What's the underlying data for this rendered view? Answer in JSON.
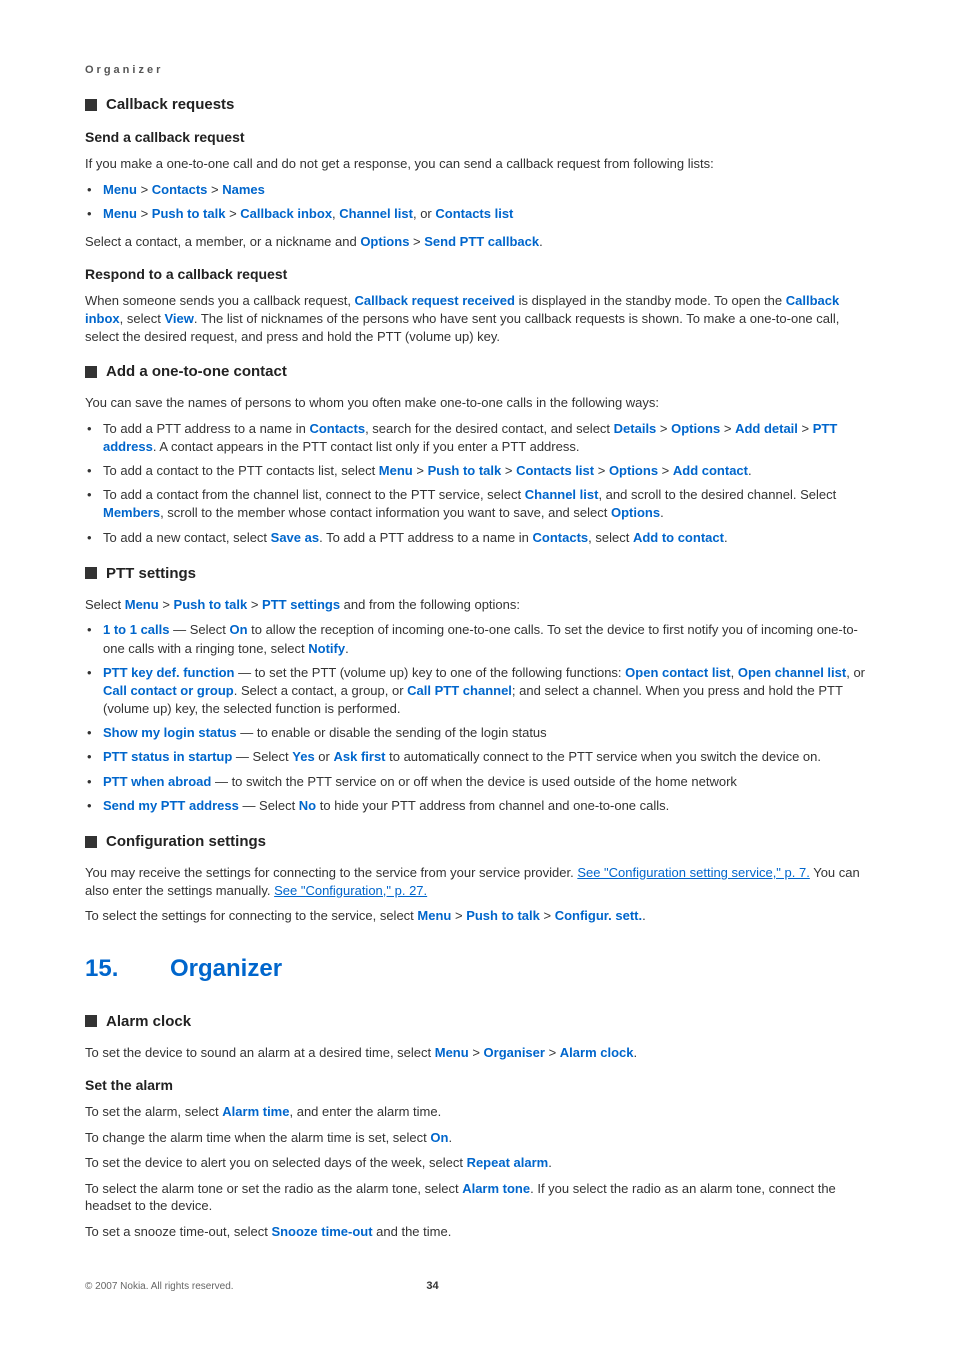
{
  "folio": "Organizer",
  "sections": {
    "callback_requests": "Callback requests",
    "send_cb_req": "Send a callback request",
    "send_cb_p": "If you make a one-to-one call and do not get a response, you can send a callback request from following lists:",
    "send_cb_b1_a": "Menu",
    "send_cb_b1_b": "Contacts",
    "send_cb_b1_c": "Names",
    "send_cb_b2_a": "Menu",
    "send_cb_b2_b": "Push to talk",
    "send_cb_b2_c": "Callback inbox",
    "send_cb_b2_d": "Channel list",
    "send_cb_b2_e": "Contacts list",
    "send_cb_last_1": "Select a contact, a member, or a nickname and ",
    "send_cb_last_2": "Options",
    "send_cb_last_3": "Send PTT callback",
    "respond_cb": "Respond to a callback request",
    "respond_cb_p1": "When someone sends you a callback request, ",
    "respond_cb_p2": "Callback request received",
    "respond_cb_p3": " is displayed in the standby mode. To open the ",
    "respond_cb_p4": "Callback inbox",
    "respond_cb_p5": ", select ",
    "respond_cb_p6": "View",
    "respond_cb_p7": ". The list of nicknames of the persons who have sent you callback requests is shown. To make a one-to-one call, select the desired request, and press and hold the PTT (volume up) key.",
    "add_one": "Add a one-to-one contact",
    "add_one_p": "You can save the names of persons to whom you often make one-to-one calls in the following ways:",
    "add_one_b1_1": "To add a PTT address to a name in ",
    "add_one_b1_2": "Contacts",
    "add_one_b1_3": ", search for the desired contact, and select ",
    "add_one_b1_4": "Details",
    "add_one_b1_5": "Options",
    "add_one_b1_6": "Add detail",
    "add_one_b1_7": "PTT address",
    "add_one_b1_8": ". A contact appears in the PTT contact list only if you enter a PTT address.",
    "add_one_b2_1": "To add a contact to the PTT contacts list, select ",
    "add_one_b2_2": "Menu",
    "add_one_b2_3": "Push to talk",
    "add_one_b2_4": "Contacts list",
    "add_one_b2_5": "Options",
    "add_one_b2_6": "Add contact",
    "add_one_b3_1": "To add a contact from the channel list, connect to the PTT service, select ",
    "add_one_b3_2": "Channel list",
    "add_one_b3_3": ", and scroll to the desired channel. Select ",
    "add_one_b3_4": "Members",
    "add_one_b3_5": ", scroll to the member whose contact information you want to save, and select ",
    "add_one_b3_6": "Options",
    "add_one_b4_1": "To add a new contact, select ",
    "add_one_b4_2": "Save as",
    "add_one_b4_3": ". To add a PTT address to a name in ",
    "add_one_b4_4": "Contacts",
    "add_one_b4_5": ", select ",
    "add_one_b4_6": "Add to contact",
    "ptt_settings": "PTT settings",
    "ptt_p_1": "Select ",
    "ptt_p_2": "Menu",
    "ptt_p_3": "Push to talk",
    "ptt_p_4": "PTT settings",
    "ptt_p_5": " and from the following options:",
    "ptt_b1_1": "1 to 1 calls",
    "ptt_b1_2": " — Select ",
    "ptt_b1_3": "On",
    "ptt_b1_4": " to allow the reception of incoming one-to-one calls. To set the device to first notify you of incoming one-to-one calls with a ringing tone, select ",
    "ptt_b1_5": "Notify",
    "ptt_b2_1": "PTT key def. function",
    "ptt_b2_2": " — to set the PTT (volume up) key to one of the following functions: ",
    "ptt_b2_3": "Open contact list",
    "ptt_b2_4": "Open channel list",
    "ptt_b2_5": "Call contact or group",
    "ptt_b2_6": ". Select a contact, a group, or ",
    "ptt_b2_7": "Call PTT channel",
    "ptt_b2_8": "; and select a channel. When you press and hold the PTT (volume up) key, the selected function is performed.",
    "ptt_b3_1": "Show my login status",
    "ptt_b3_2": " — to enable or disable the sending of the login status",
    "ptt_b4_1": "PTT status in startup",
    "ptt_b4_2": " — Select ",
    "ptt_b4_3": "Yes",
    "ptt_b4_4": " or ",
    "ptt_b4_5": "Ask first",
    "ptt_b4_6": " to automatically connect to the PTT service when you switch the device on.",
    "ptt_b5_1": "PTT when abroad",
    "ptt_b5_2": " — to switch the PTT service on or off when the device is used outside of the home network",
    "ptt_b6_1": "Send my PTT address",
    "ptt_b6_2": " — Select ",
    "ptt_b6_3": "No",
    "ptt_b6_4": " to hide your PTT address from channel and one-to-one calls.",
    "config_settings": "Configuration settings",
    "config_p1_1": "You may receive the settings for connecting to the service from your service provider. ",
    "config_p1_2": "See \"Configuration setting service,\" p. 7.",
    "config_p1_3": " You can also enter the settings manually. ",
    "config_p1_4": "See \"Configuration,\" p. 27.",
    "config_p2_1": "To select the settings for connecting to the service, select ",
    "config_p2_2": "Menu",
    "config_p2_3": "Push to talk",
    "config_p2_4": "Configur. sett.",
    "chapter_num": "15.",
    "chapter_title": "Organizer",
    "alarm_clock": "Alarm clock",
    "alarm_p_1": "To set the device to sound an alarm at a desired time, select ",
    "alarm_p_2": "Menu",
    "alarm_p_3": "Organiser",
    "alarm_p_4": "Alarm clock",
    "set_alarm": "Set the alarm",
    "sa_p1_1": "To set the alarm, select ",
    "sa_p1_2": "Alarm time",
    "sa_p1_3": ", and enter the alarm time.",
    "sa_p2_1": "To change the alarm time when the alarm time is set, select ",
    "sa_p2_2": "On",
    "sa_p3_1": "To set the device to alert you on selected days of the week, select ",
    "sa_p3_2": "Repeat alarm",
    "sa_p4_1": "To select the alarm tone or set the radio as the alarm tone, select ",
    "sa_p4_2": "Alarm tone",
    "sa_p4_3": ". If you select the radio as an alarm tone, connect the headset to the device.",
    "sa_p5_1": "To set a snooze time-out, select ",
    "sa_p5_2": "Snooze time-out",
    "sa_p5_3": " and the time.",
    "copyright": "© 2007 Nokia. All rights reserved.",
    "page_num": "34"
  }
}
